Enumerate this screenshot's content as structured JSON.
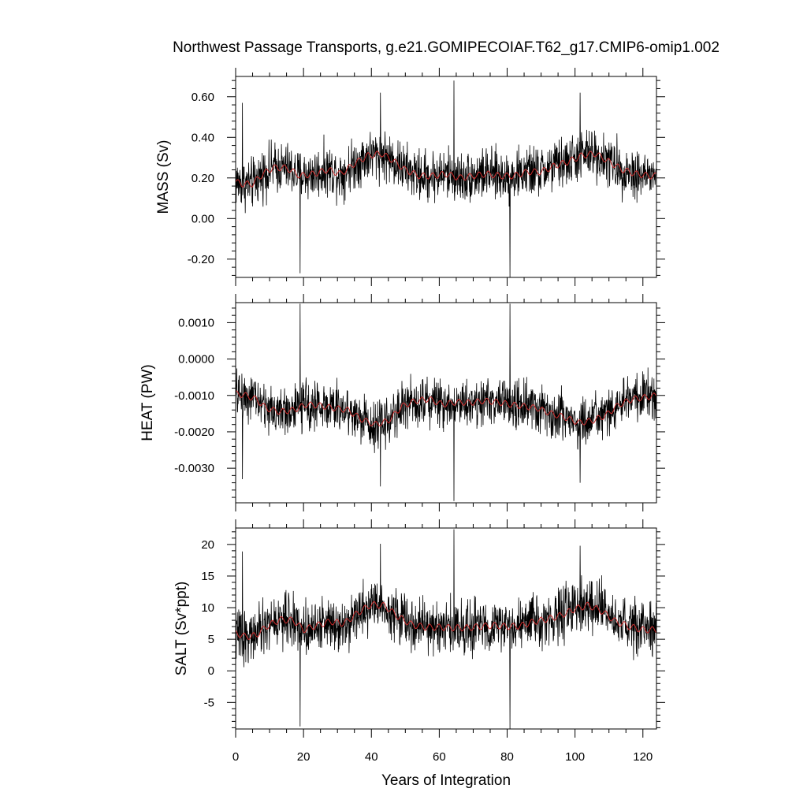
{
  "title": "Northwest Passage Transports, g.e21.GOMIPECOIAF.T62_g17.CMIP6-omip1.002",
  "xlabel": "Years of Integration",
  "colors": {
    "raw_series": "#000000",
    "smoothed_series": "#cc2b2b"
  },
  "chart_data": [
    {
      "type": "line",
      "ylabel": "MASS (Sv)",
      "xlim": [
        0,
        124
      ],
      "ylim": [
        -0.29,
        0.7
      ],
      "x_ticks": [
        0,
        20,
        40,
        60,
        80,
        100,
        120
      ],
      "x_tick_labels": [
        "0",
        "20",
        "40",
        "60",
        "80",
        "100",
        "120"
      ],
      "y_ticks": [
        -0.2,
        0.0,
        0.2,
        0.4,
        0.6
      ],
      "y_tick_labels": [
        "-0.20",
        "0.00",
        "0.20",
        "0.40",
        "0.60"
      ],
      "mean": 0.22,
      "noise": 0.085,
      "spikes": [
        [
          2.0,
          0.57
        ],
        [
          19.0,
          -0.27
        ],
        [
          64.3,
          0.68
        ],
        [
          80.8,
          -0.29
        ],
        [
          42.7,
          0.62
        ],
        [
          101.5,
          0.62
        ]
      ],
      "smoothed": [
        [
          0,
          0.18
        ],
        [
          2,
          0.17
        ],
        [
          5,
          0.17
        ],
        [
          8,
          0.22
        ],
        [
          11,
          0.25
        ],
        [
          15,
          0.25
        ],
        [
          19,
          0.21
        ],
        [
          23,
          0.22
        ],
        [
          27,
          0.24
        ],
        [
          31,
          0.22
        ],
        [
          35,
          0.27
        ],
        [
          39,
          0.31
        ],
        [
          43,
          0.32
        ],
        [
          46,
          0.29
        ],
        [
          50,
          0.24
        ],
        [
          54,
          0.21
        ],
        [
          58,
          0.21
        ],
        [
          62,
          0.22
        ],
        [
          66,
          0.2
        ],
        [
          70,
          0.21
        ],
        [
          74,
          0.22
        ],
        [
          78,
          0.21
        ],
        [
          82,
          0.21
        ],
        [
          86,
          0.23
        ],
        [
          90,
          0.23
        ],
        [
          94,
          0.26
        ],
        [
          98,
          0.28
        ],
        [
          102,
          0.31
        ],
        [
          106,
          0.32
        ],
        [
          110,
          0.28
        ],
        [
          114,
          0.24
        ],
        [
          118,
          0.22
        ],
        [
          122,
          0.21
        ],
        [
          124,
          0.21
        ]
      ]
    },
    {
      "type": "line",
      "ylabel": "HEAT (PW)",
      "xlim": [
        0,
        124
      ],
      "ylim": [
        -0.00395,
        0.00155
      ],
      "x_ticks": [
        0,
        20,
        40,
        60,
        80,
        100,
        120
      ],
      "x_tick_labels": [
        "0",
        "20",
        "40",
        "60",
        "80",
        "100",
        "120"
      ],
      "y_ticks": [
        -0.003,
        -0.002,
        -0.001,
        0.0,
        0.001
      ],
      "y_tick_labels": [
        "-0.0030",
        "-0.0020",
        "-0.0010",
        "0.0000",
        "0.0010"
      ],
      "mean": -0.00128,
      "noise": 0.00045,
      "spikes": [
        [
          2.0,
          -0.0033
        ],
        [
          19.0,
          0.00152
        ],
        [
          64.3,
          -0.0039
        ],
        [
          80.8,
          0.00152
        ],
        [
          42.7,
          -0.0035
        ],
        [
          101.5,
          -0.0034
        ]
      ],
      "smoothed": [
        [
          0,
          -0.00095
        ],
        [
          3,
          -0.001
        ],
        [
          6,
          -0.0011
        ],
        [
          9,
          -0.00135
        ],
        [
          13,
          -0.00145
        ],
        [
          17,
          -0.0014
        ],
        [
          21,
          -0.00125
        ],
        [
          25,
          -0.00128
        ],
        [
          29,
          -0.00135
        ],
        [
          33,
          -0.0014
        ],
        [
          37,
          -0.00165
        ],
        [
          41,
          -0.0018
        ],
        [
          45,
          -0.0017
        ],
        [
          49,
          -0.0013
        ],
        [
          53,
          -0.00115
        ],
        [
          57,
          -0.0011
        ],
        [
          61,
          -0.00125
        ],
        [
          65,
          -0.00118
        ],
        [
          69,
          -0.0012
        ],
        [
          73,
          -0.00115
        ],
        [
          77,
          -0.00118
        ],
        [
          81,
          -0.00125
        ],
        [
          85,
          -0.0013
        ],
        [
          89,
          -0.00135
        ],
        [
          93,
          -0.0015
        ],
        [
          97,
          -0.0016
        ],
        [
          101,
          -0.00175
        ],
        [
          105,
          -0.0017
        ],
        [
          109,
          -0.00155
        ],
        [
          113,
          -0.00125
        ],
        [
          117,
          -0.0011
        ],
        [
          121,
          -0.00105
        ],
        [
          124,
          -0.001
        ]
      ]
    },
    {
      "type": "line",
      "ylabel": "SALT (Sv*ppt)",
      "xlim": [
        0,
        124
      ],
      "ylim": [
        -9.2,
        22.6
      ],
      "x_ticks": [
        0,
        20,
        40,
        60,
        80,
        100,
        120
      ],
      "x_tick_labels": [
        "0",
        "20",
        "40",
        "60",
        "80",
        "100",
        "120"
      ],
      "y_ticks": [
        -5,
        0,
        5,
        10,
        15,
        20
      ],
      "y_tick_labels": [
        "-5",
        "0",
        "5",
        "10",
        "15",
        "20"
      ],
      "mean": 7.1,
      "noise": 2.8,
      "spikes": [
        [
          2.0,
          18.9
        ],
        [
          19.0,
          -8.8
        ],
        [
          64.3,
          22.4
        ],
        [
          80.8,
          -9.2
        ],
        [
          42.7,
          20.1
        ],
        [
          101.5,
          19.8
        ]
      ],
      "smoothed": [
        [
          0,
          6.0
        ],
        [
          3,
          5.4
        ],
        [
          6,
          5.6
        ],
        [
          9,
          7.0
        ],
        [
          13,
          8.1
        ],
        [
          17,
          8.0
        ],
        [
          20,
          6.5
        ],
        [
          24,
          7.2
        ],
        [
          28,
          7.8
        ],
        [
          32,
          7.5
        ],
        [
          36,
          9.2
        ],
        [
          40,
          10.5
        ],
        [
          44,
          10.3
        ],
        [
          48,
          8.5
        ],
        [
          52,
          7.3
        ],
        [
          56,
          6.9
        ],
        [
          60,
          6.9
        ],
        [
          64,
          6.8
        ],
        [
          68,
          6.8
        ],
        [
          72,
          7.0
        ],
        [
          76,
          7.2
        ],
        [
          80,
          7.0
        ],
        [
          84,
          7.1
        ],
        [
          88,
          7.8
        ],
        [
          92,
          8.2
        ],
        [
          96,
          8.8
        ],
        [
          100,
          9.8
        ],
        [
          104,
          10.4
        ],
        [
          108,
          9.4
        ],
        [
          112,
          7.8
        ],
        [
          116,
          7.0
        ],
        [
          120,
          6.5
        ],
        [
          124,
          6.5
        ]
      ]
    }
  ]
}
